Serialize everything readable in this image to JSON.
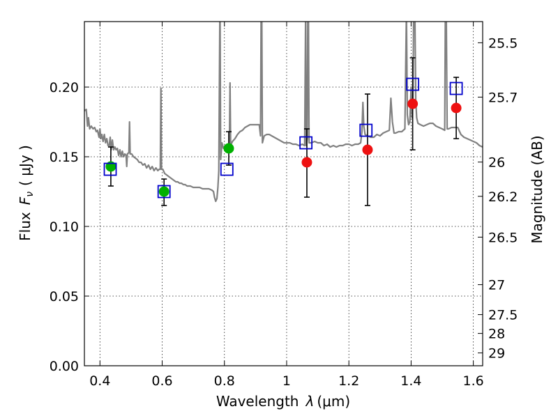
{
  "chart_data": {
    "type": "scatter",
    "xlabel_prefix": "Wavelength",
    "xlabel_symbol": "λ",
    "xlabel_unit": "(μm)",
    "ylabel_prefix": "Flux",
    "ylabel_symbol": "F",
    "ylabel_subscript": "ν",
    "ylabel_unit": "( μJy )",
    "y2label": "Magnitude (AB)",
    "xlim": [
      0.35,
      1.63
    ],
    "ylim": [
      0.0,
      0.247
    ],
    "xticks": [
      0.4,
      0.6,
      0.8,
      1.0,
      1.2,
      1.4,
      1.6
    ],
    "xtick_labels": [
      "0.4",
      "0.6",
      "0.8",
      "1",
      "1.2",
      "1.4",
      "1.6"
    ],
    "yticks": [
      0.0,
      0.05,
      0.1,
      0.15,
      0.2
    ],
    "ytick_labels": [
      "0.00",
      "0.05",
      "0.10",
      "0.15",
      "0.20"
    ],
    "magnitude_ticks": [
      {
        "label": "25.5",
        "flux": 0.2318
      },
      {
        "label": "25.7",
        "flux": 0.1928
      },
      {
        "label": "26",
        "flux": 0.1462
      },
      {
        "label": "26.2",
        "flux": 0.1216
      },
      {
        "label": "26.5",
        "flux": 0.0923
      },
      {
        "label": "27",
        "flux": 0.0582
      },
      {
        "label": "27.5",
        "flux": 0.0367
      },
      {
        "label": "28",
        "flux": 0.0232
      },
      {
        "label": "29",
        "flux": 0.0092
      }
    ],
    "grid": true,
    "series": [
      {
        "name": "observed (green)",
        "color": "#00b000",
        "marker": "circle",
        "points": [
          {
            "x": 0.435,
            "y": 0.143,
            "yerr_low": 0.129,
            "yerr_high": 0.157
          },
          {
            "x": 0.606,
            "y": 0.125,
            "yerr_low": 0.115,
            "yerr_high": 0.134
          },
          {
            "x": 0.814,
            "y": 0.156,
            "yerr_low": 0.144,
            "yerr_high": 0.168
          }
        ]
      },
      {
        "name": "observed (red)",
        "color": "#ee1111",
        "marker": "circle",
        "points": [
          {
            "x": 1.065,
            "y": 0.146,
            "yerr_low": 0.121,
            "yerr_high": 0.17
          },
          {
            "x": 1.26,
            "y": 0.155,
            "yerr_low": 0.115,
            "yerr_high": 0.195
          },
          {
            "x": 1.405,
            "y": 0.188,
            "yerr_low": 0.155,
            "yerr_high": 0.221
          },
          {
            "x": 1.545,
            "y": 0.185,
            "yerr_low": 0.163,
            "yerr_high": 0.207
          }
        ]
      },
      {
        "name": "model photometry",
        "color": "#0000cc",
        "marker": "square",
        "points": [
          {
            "x": 0.433,
            "y": 0.141
          },
          {
            "x": 0.606,
            "y": 0.125
          },
          {
            "x": 0.808,
            "y": 0.141
          },
          {
            "x": 1.062,
            "y": 0.16
          },
          {
            "x": 1.255,
            "y": 0.169
          },
          {
            "x": 1.405,
            "y": 0.202
          },
          {
            "x": 1.545,
            "y": 0.199
          }
        ]
      }
    ],
    "spectrum": {
      "name": "model spectrum",
      "color": "#808080",
      "points": [
        [
          0.35,
          0.183
        ],
        [
          0.356,
          0.184
        ],
        [
          0.36,
          0.172
        ],
        [
          0.363,
          0.178
        ],
        [
          0.367,
          0.17
        ],
        [
          0.372,
          0.172
        ],
        [
          0.378,
          0.17
        ],
        [
          0.383,
          0.171
        ],
        [
          0.388,
          0.168
        ],
        [
          0.392,
          0.169
        ],
        [
          0.397,
          0.164
        ],
        [
          0.4,
          0.17
        ],
        [
          0.403,
          0.163
        ],
        [
          0.406,
          0.166
        ],
        [
          0.41,
          0.161
        ],
        [
          0.414,
          0.166
        ],
        [
          0.418,
          0.16
        ],
        [
          0.422,
          0.163
        ],
        [
          0.426,
          0.158
        ],
        [
          0.43,
          0.158
        ],
        [
          0.433,
          0.164
        ],
        [
          0.436,
          0.155
        ],
        [
          0.44,
          0.162
        ],
        [
          0.444,
          0.155
        ],
        [
          0.448,
          0.157
        ],
        [
          0.452,
          0.155
        ],
        [
          0.456,
          0.156
        ],
        [
          0.46,
          0.151
        ],
        [
          0.464,
          0.155
        ],
        [
          0.468,
          0.15
        ],
        [
          0.472,
          0.154
        ],
        [
          0.476,
          0.15
        ],
        [
          0.48,
          0.152
        ],
        [
          0.484,
          0.151
        ],
        [
          0.486,
          0.143
        ],
        [
          0.488,
          0.152
        ],
        [
          0.493,
          0.153
        ],
        [
          0.495,
          0.175
        ],
        [
          0.497,
          0.152
        ],
        [
          0.502,
          0.152
        ],
        [
          0.508,
          0.15
        ],
        [
          0.514,
          0.149
        ],
        [
          0.52,
          0.148
        ],
        [
          0.526,
          0.146
        ],
        [
          0.532,
          0.146
        ],
        [
          0.538,
          0.144
        ],
        [
          0.544,
          0.145
        ],
        [
          0.55,
          0.142
        ],
        [
          0.556,
          0.144
        ],
        [
          0.562,
          0.141
        ],
        [
          0.568,
          0.143
        ],
        [
          0.574,
          0.14
        ],
        [
          0.58,
          0.142
        ],
        [
          0.586,
          0.14
        ],
        [
          0.59,
          0.141
        ],
        [
          0.594,
          0.141
        ],
        [
          0.596,
          0.199
        ],
        [
          0.598,
          0.141
        ],
        [
          0.602,
          0.141
        ],
        [
          0.608,
          0.138
        ],
        [
          0.614,
          0.137
        ],
        [
          0.62,
          0.136
        ],
        [
          0.626,
          0.135
        ],
        [
          0.632,
          0.134
        ],
        [
          0.638,
          0.133
        ],
        [
          0.644,
          0.132
        ],
        [
          0.65,
          0.132
        ],
        [
          0.656,
          0.131
        ],
        [
          0.662,
          0.131
        ],
        [
          0.668,
          0.13
        ],
        [
          0.674,
          0.13
        ],
        [
          0.68,
          0.129
        ],
        [
          0.69,
          0.129
        ],
        [
          0.7,
          0.128
        ],
        [
          0.71,
          0.128
        ],
        [
          0.72,
          0.128
        ],
        [
          0.73,
          0.127
        ],
        [
          0.74,
          0.127
        ],
        [
          0.75,
          0.127
        ],
        [
          0.76,
          0.126
        ],
        [
          0.765,
          0.125
        ],
        [
          0.768,
          0.121
        ],
        [
          0.772,
          0.118
        ],
        [
          0.776,
          0.12
        ],
        [
          0.779,
          0.128
        ],
        [
          0.782,
          0.14
        ],
        [
          0.785,
          0.245
        ],
        [
          0.786,
          0.255
        ],
        [
          0.788,
          0.148
        ],
        [
          0.792,
          0.16
        ],
        [
          0.797,
          0.156
        ],
        [
          0.802,
          0.158
        ],
        [
          0.807,
          0.156
        ],
        [
          0.812,
          0.158
        ],
        [
          0.816,
          0.158
        ],
        [
          0.818,
          0.203
        ],
        [
          0.82,
          0.158
        ],
        [
          0.826,
          0.161
        ],
        [
          0.834,
          0.163
        ],
        [
          0.842,
          0.166
        ],
        [
          0.85,
          0.168
        ],
        [
          0.858,
          0.169
        ],
        [
          0.866,
          0.171
        ],
        [
          0.874,
          0.172
        ],
        [
          0.882,
          0.173
        ],
        [
          0.89,
          0.173
        ],
        [
          0.898,
          0.173
        ],
        [
          0.906,
          0.173
        ],
        [
          0.912,
          0.173
        ],
        [
          0.916,
          0.165
        ],
        [
          0.918,
          0.255
        ],
        [
          0.92,
          0.255
        ],
        [
          0.922,
          0.16
        ],
        [
          0.928,
          0.165
        ],
        [
          0.936,
          0.166
        ],
        [
          0.944,
          0.166
        ],
        [
          0.952,
          0.165
        ],
        [
          0.96,
          0.164
        ],
        [
          0.968,
          0.163
        ],
        [
          0.976,
          0.162
        ],
        [
          0.984,
          0.161
        ],
        [
          0.992,
          0.16
        ],
        [
          1.0,
          0.16
        ],
        [
          1.01,
          0.16
        ],
        [
          1.02,
          0.159
        ],
        [
          1.03,
          0.159
        ],
        [
          1.04,
          0.158
        ],
        [
          1.05,
          0.159
        ],
        [
          1.058,
          0.158
        ],
        [
          1.061,
          0.255
        ],
        [
          1.063,
          0.158
        ],
        [
          1.066,
          0.163
        ],
        [
          1.068,
          0.255
        ],
        [
          1.07,
          0.255
        ],
        [
          1.072,
          0.16
        ],
        [
          1.08,
          0.16
        ],
        [
          1.09,
          0.161
        ],
        [
          1.1,
          0.16
        ],
        [
          1.11,
          0.16
        ],
        [
          1.12,
          0.158
        ],
        [
          1.13,
          0.159
        ],
        [
          1.14,
          0.157
        ],
        [
          1.15,
          0.158
        ],
        [
          1.16,
          0.157
        ],
        [
          1.17,
          0.158
        ],
        [
          1.18,
          0.158
        ],
        [
          1.19,
          0.159
        ],
        [
          1.2,
          0.159
        ],
        [
          1.21,
          0.158
        ],
        [
          1.22,
          0.159
        ],
        [
          1.23,
          0.159
        ],
        [
          1.238,
          0.16
        ],
        [
          1.242,
          0.168
        ],
        [
          1.245,
          0.189
        ],
        [
          1.248,
          0.172
        ],
        [
          1.252,
          0.166
        ],
        [
          1.26,
          0.165
        ],
        [
          1.27,
          0.164
        ],
        [
          1.28,
          0.164
        ],
        [
          1.29,
          0.166
        ],
        [
          1.3,
          0.165
        ],
        [
          1.31,
          0.167
        ],
        [
          1.32,
          0.168
        ],
        [
          1.33,
          0.169
        ],
        [
          1.335,
          0.192
        ],
        [
          1.34,
          0.175
        ],
        [
          1.345,
          0.167
        ],
        [
          1.35,
          0.167
        ],
        [
          1.36,
          0.168
        ],
        [
          1.37,
          0.168
        ],
        [
          1.38,
          0.17
        ],
        [
          1.385,
          0.255
        ],
        [
          1.388,
          0.18
        ],
        [
          1.392,
          0.173
        ],
        [
          1.396,
          0.175
        ],
        [
          1.4,
          0.2
        ],
        [
          1.403,
          0.178
        ],
        [
          1.406,
          0.19
        ],
        [
          1.408,
          0.255
        ],
        [
          1.412,
          0.255
        ],
        [
          1.415,
          0.19
        ],
        [
          1.418,
          0.178
        ],
        [
          1.422,
          0.174
        ],
        [
          1.43,
          0.173
        ],
        [
          1.44,
          0.172
        ],
        [
          1.45,
          0.173
        ],
        [
          1.46,
          0.174
        ],
        [
          1.47,
          0.174
        ],
        [
          1.48,
          0.172
        ],
        [
          1.49,
          0.171
        ],
        [
          1.5,
          0.17
        ],
        [
          1.508,
          0.169
        ],
        [
          1.51,
          0.255
        ],
        [
          1.513,
          0.255
        ],
        [
          1.516,
          0.17
        ],
        [
          1.52,
          0.17
        ],
        [
          1.53,
          0.171
        ],
        [
          1.54,
          0.171
        ],
        [
          1.55,
          0.171
        ],
        [
          1.56,
          0.166
        ],
        [
          1.57,
          0.164
        ],
        [
          1.58,
          0.163
        ],
        [
          1.59,
          0.162
        ],
        [
          1.6,
          0.161
        ],
        [
          1.61,
          0.16
        ],
        [
          1.62,
          0.158
        ],
        [
          1.63,
          0.157
        ]
      ]
    }
  }
}
